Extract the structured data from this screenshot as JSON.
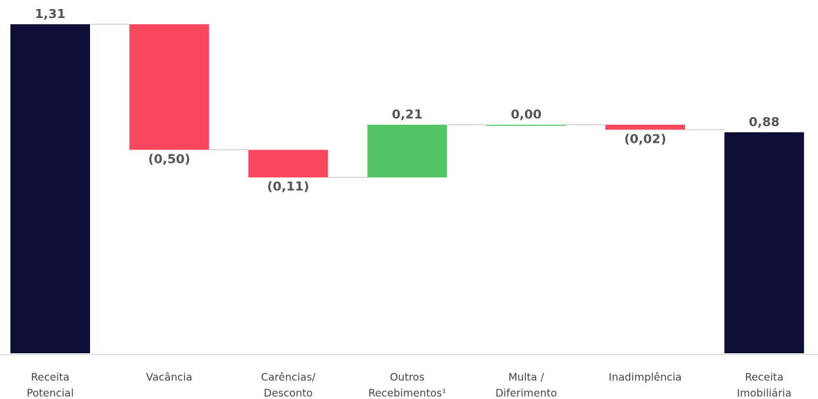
{
  "chart_data": {
    "type": "waterfall",
    "categories": [
      [
        "Receita",
        "Potencial"
      ],
      [
        "Vacância"
      ],
      [
        "Carências/",
        "Desconto"
      ],
      [
        "Outros",
        "Recebimentos¹"
      ],
      [
        "Multa /",
        "Diferimento"
      ],
      [
        "Inadimplência"
      ],
      [
        "Receita",
        "Imobiliária"
      ]
    ],
    "values": [
      1.31,
      -0.5,
      -0.11,
      0.21,
      0.0,
      -0.02,
      0.88
    ],
    "value_labels": [
      "1,31",
      "(0,50)",
      "(0,11)",
      "0,21",
      "0,00",
      "(0,02)",
      "0,88"
    ],
    "measure": [
      "total",
      "relative",
      "relative",
      "relative",
      "relative",
      "relative",
      "total"
    ],
    "colors": {
      "total": "#0e0e36",
      "increase": "#53c566",
      "decrease": "#f9485e"
    },
    "ylim": [
      0,
      1.31
    ]
  }
}
